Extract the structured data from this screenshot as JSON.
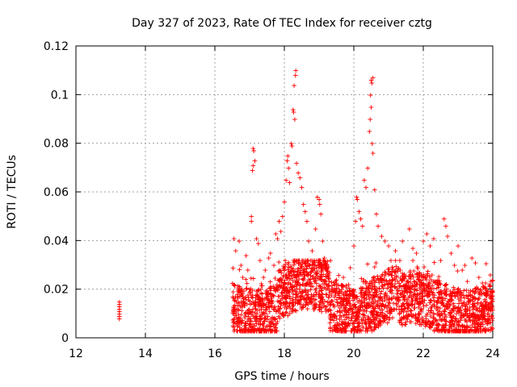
{
  "chart_data": {
    "type": "scatter",
    "title": "Day 327 of 2023, Rate Of TEC Index for receiver cztg",
    "xlabel": "GPS time / hours",
    "ylabel": "ROTI / TECUs",
    "xlim": [
      12,
      24
    ],
    "ylim": [
      0,
      0.12
    ],
    "xticks": [
      "12",
      "14",
      "16",
      "18",
      "20",
      "22",
      "24"
    ],
    "yticks": [
      "0",
      "0.02",
      "0.04",
      "0.06",
      "0.08",
      "0.1",
      "0.12"
    ],
    "grid": true,
    "marker": "+",
    "color": "#ff0000",
    "series": [
      {
        "name": "ROTI",
        "points": [
          [
            13.25,
            0.009
          ],
          [
            13.25,
            0.01
          ],
          [
            13.25,
            0.011
          ],
          [
            13.25,
            0.012
          ],
          [
            13.25,
            0.013
          ],
          [
            13.25,
            0.014
          ],
          [
            13.25,
            0.015
          ],
          [
            13.25,
            0.008
          ],
          [
            16.55,
            0.041
          ],
          [
            16.6,
            0.036
          ],
          [
            16.7,
            0.04
          ],
          [
            16.75,
            0.03
          ],
          [
            16.8,
            0.025
          ],
          [
            16.9,
            0.034
          ],
          [
            16.95,
            0.028
          ],
          [
            17.05,
            0.05
          ],
          [
            17.05,
            0.048
          ],
          [
            17.1,
            0.078
          ],
          [
            17.12,
            0.077
          ],
          [
            17.15,
            0.073
          ],
          [
            17.1,
            0.071
          ],
          [
            17.08,
            0.069
          ],
          [
            17.2,
            0.041
          ],
          [
            17.25,
            0.039
          ],
          [
            17.3,
            0.032
          ],
          [
            17.4,
            0.025
          ],
          [
            17.45,
            0.028
          ],
          [
            17.55,
            0.033
          ],
          [
            17.6,
            0.035
          ],
          [
            17.7,
            0.03
          ],
          [
            17.75,
            0.043
          ],
          [
            17.8,
            0.041
          ],
          [
            17.85,
            0.048
          ],
          [
            17.9,
            0.044
          ],
          [
            17.95,
            0.05
          ],
          [
            18.0,
            0.056
          ],
          [
            18.05,
            0.065
          ],
          [
            18.08,
            0.073
          ],
          [
            18.1,
            0.075
          ],
          [
            18.12,
            0.07
          ],
          [
            18.15,
            0.064
          ],
          [
            18.2,
            0.08
          ],
          [
            18.22,
            0.079
          ],
          [
            18.25,
            0.094
          ],
          [
            18.27,
            0.093
          ],
          [
            18.3,
            0.09
          ],
          [
            18.28,
            0.104
          ],
          [
            18.32,
            0.108
          ],
          [
            18.33,
            0.11
          ],
          [
            18.35,
            0.072
          ],
          [
            18.4,
            0.068
          ],
          [
            18.45,
            0.066
          ],
          [
            18.5,
            0.062
          ],
          [
            18.55,
            0.055
          ],
          [
            18.6,
            0.052
          ],
          [
            18.65,
            0.048
          ],
          [
            18.7,
            0.04
          ],
          [
            18.8,
            0.036
          ],
          [
            18.9,
            0.045
          ],
          [
            18.95,
            0.058
          ],
          [
            19.0,
            0.057
          ],
          [
            19.02,
            0.055
          ],
          [
            19.05,
            0.051
          ],
          [
            19.1,
            0.04
          ],
          [
            19.15,
            0.033
          ],
          [
            19.2,
            0.03
          ],
          [
            19.3,
            0.027
          ],
          [
            19.5,
            0.024
          ],
          [
            19.7,
            0.025
          ],
          [
            19.9,
            0.029
          ],
          [
            20.0,
            0.038
          ],
          [
            20.05,
            0.048
          ],
          [
            20.08,
            0.058
          ],
          [
            20.1,
            0.057
          ],
          [
            20.15,
            0.052
          ],
          [
            20.2,
            0.049
          ],
          [
            20.25,
            0.046
          ],
          [
            20.3,
            0.065
          ],
          [
            20.35,
            0.062
          ],
          [
            20.4,
            0.07
          ],
          [
            20.45,
            0.085
          ],
          [
            20.47,
            0.09
          ],
          [
            20.5,
            0.095
          ],
          [
            20.48,
            0.1
          ],
          [
            20.52,
            0.105
          ],
          [
            20.5,
            0.106
          ],
          [
            20.55,
            0.107
          ],
          [
            20.53,
            0.08
          ],
          [
            20.55,
            0.076
          ],
          [
            20.6,
            0.061
          ],
          [
            20.65,
            0.051
          ],
          [
            20.7,
            0.046
          ],
          [
            20.8,
            0.042
          ],
          [
            20.9,
            0.04
          ],
          [
            21.0,
            0.038
          ],
          [
            21.2,
            0.036
          ],
          [
            21.4,
            0.04
          ],
          [
            21.6,
            0.045
          ],
          [
            21.7,
            0.037
          ],
          [
            21.8,
            0.035
          ],
          [
            22.0,
            0.04
          ],
          [
            22.1,
            0.043
          ],
          [
            22.2,
            0.038
          ],
          [
            22.3,
            0.041
          ],
          [
            22.5,
            0.032
          ],
          [
            22.6,
            0.049
          ],
          [
            22.65,
            0.046
          ],
          [
            22.7,
            0.042
          ],
          [
            22.8,
            0.035
          ],
          [
            22.9,
            0.03
          ],
          [
            23.0,
            0.038
          ],
          [
            23.2,
            0.03
          ],
          [
            23.4,
            0.033
          ],
          [
            23.5,
            0.031
          ],
          [
            23.6,
            0.025
          ],
          [
            23.8,
            0.02
          ],
          [
            23.9,
            0.022
          ],
          [
            24.0,
            0.019
          ]
        ]
      }
    ]
  }
}
